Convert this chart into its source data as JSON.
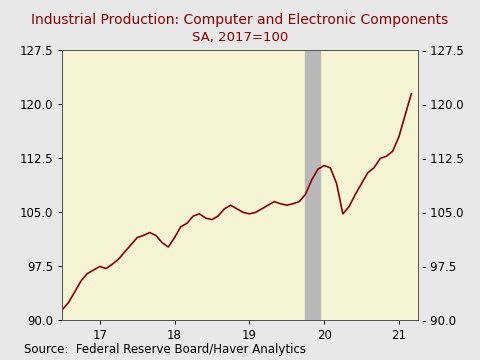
{
  "title": "Industrial Production: Computer and Electronic Components",
  "subtitle": "SA, 2017=100",
  "source": "Source:  Federal Reserve Board/Haver Analytics",
  "xlim": [
    2016.5,
    2021.25
  ],
  "ylim": [
    90.0,
    127.5
  ],
  "yticks": [
    90.0,
    97.5,
    105.0,
    112.5,
    120.0,
    127.5
  ],
  "xticks": [
    2017,
    2018,
    2019,
    2020,
    2021
  ],
  "xticklabels": [
    "17",
    "18",
    "19",
    "20",
    "21"
  ],
  "line_color": "#8B0000",
  "background_color": "#f5f5d5",
  "outer_background": "#e8e8e8",
  "recession_start": 2019.75,
  "recession_end": 2019.95,
  "recession_color": "#b8b8b8",
  "title_color": "#8B0000",
  "subtitle_color": "#8B0000",
  "source_color": "#000000",
  "title_fontsize": 10,
  "subtitle_fontsize": 9.5,
  "source_fontsize": 8.5,
  "tick_fontsize": 8.5,
  "x": [
    2016.5,
    2016.583,
    2016.667,
    2016.75,
    2016.833,
    2016.917,
    2017.0,
    2017.083,
    2017.167,
    2017.25,
    2017.333,
    2017.417,
    2017.5,
    2017.583,
    2017.667,
    2017.75,
    2017.833,
    2017.917,
    2018.0,
    2018.083,
    2018.167,
    2018.25,
    2018.333,
    2018.417,
    2018.5,
    2018.583,
    2018.667,
    2018.75,
    2018.833,
    2018.917,
    2019.0,
    2019.083,
    2019.167,
    2019.25,
    2019.333,
    2019.417,
    2019.5,
    2019.583,
    2019.667,
    2019.75,
    2019.833,
    2019.917,
    2020.0,
    2020.083,
    2020.167,
    2020.25,
    2020.333,
    2020.417,
    2020.5,
    2020.583,
    2020.667,
    2020.75,
    2020.833,
    2020.917,
    2021.0,
    2021.083,
    2021.167
  ],
  "y": [
    91.5,
    92.5,
    94.0,
    95.5,
    96.5,
    97.0,
    97.5,
    97.2,
    97.8,
    98.5,
    99.5,
    100.5,
    101.5,
    101.8,
    102.2,
    101.8,
    100.8,
    100.2,
    101.5,
    103.0,
    103.5,
    104.5,
    104.8,
    104.2,
    104.0,
    104.5,
    105.5,
    106.0,
    105.5,
    105.0,
    104.8,
    105.0,
    105.5,
    106.0,
    106.5,
    106.2,
    106.0,
    106.2,
    106.5,
    107.5,
    109.5,
    111.0,
    111.5,
    111.2,
    109.0,
    104.8,
    105.8,
    107.5,
    109.0,
    110.5,
    111.2,
    112.5,
    112.8,
    113.5,
    115.5,
    118.5,
    121.5
  ]
}
